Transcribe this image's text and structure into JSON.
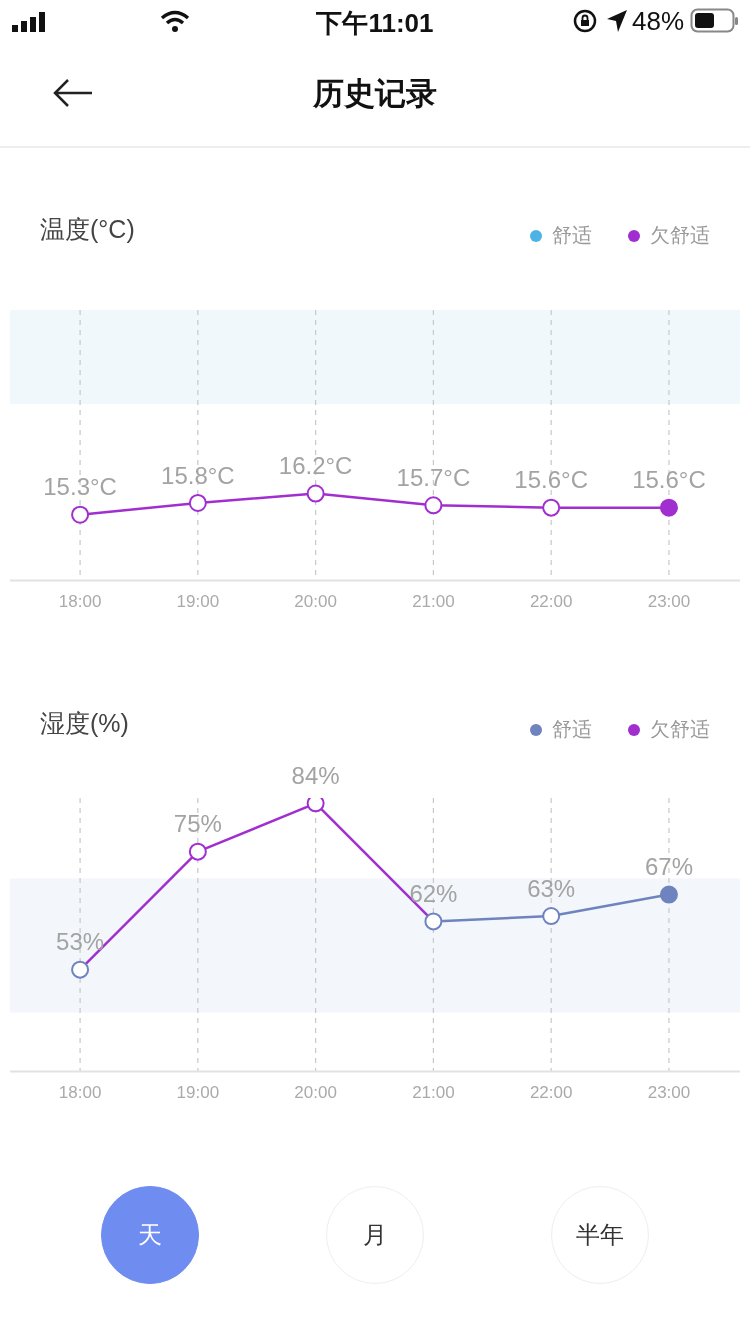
{
  "chart_data": [
    {
      "type": "other",
      "title": "历史记录",
      "annotations": [
        "下午11:01",
        "48%"
      ]
    },
    {
      "type": "line",
      "title": "温度(°C)",
      "categories": [
        "18:00",
        "19:00",
        "20:00",
        "21:00",
        "22:00",
        "23:00"
      ],
      "series": [
        {
          "name": "舒适",
          "color": "#4db3e6",
          "values": [
            null,
            null,
            null,
            null,
            null,
            null
          ]
        },
        {
          "name": "欠舒适",
          "color": "#a12fd0",
          "values": [
            15.3,
            15.8,
            16.2,
            15.7,
            15.6,
            15.6
          ],
          "value_labels": [
            "15.3°C",
            "15.8°C",
            "16.2°C",
            "15.7°C",
            "15.6°C",
            "15.6°C"
          ]
        }
      ],
      "ylim": [
        12.5,
        24
      ],
      "bands": [
        {
          "axis": "y",
          "from": 20,
          "to": 24,
          "color": "#f0f8fc"
        }
      ],
      "grid": "x",
      "legend": "top right",
      "marker": "circle",
      "tick_labels": "x"
    },
    {
      "type": "line",
      "title": "湿度(%)",
      "categories": [
        "18:00",
        "19:00",
        "20:00",
        "21:00",
        "22:00",
        "23:00"
      ],
      "series": [
        {
          "name": "舒适",
          "color": "#6f84bf",
          "values": [
            53,
            null,
            null,
            62,
            63,
            67
          ],
          "value_labels": [
            "53%",
            null,
            null,
            "62%",
            "63%",
            "67%"
          ]
        },
        {
          "name": "欠舒适",
          "color": "#a12fd0",
          "values": [
            null,
            75,
            84,
            null,
            null,
            null
          ],
          "value_labels": [
            null,
            "75%",
            "84%",
            null,
            null,
            null
          ]
        }
      ],
      "ylim": [
        34,
        85
      ],
      "bands": [
        {
          "axis": "y",
          "from": 45,
          "to": 70,
          "color": "#f3f6fb"
        }
      ],
      "grid": "x",
      "legend": "top right",
      "marker": "circle",
      "tick_labels": "x"
    },
    {
      "type": "other",
      "annotations": [
        "天",
        "月",
        "半年"
      ]
    }
  ]
}
